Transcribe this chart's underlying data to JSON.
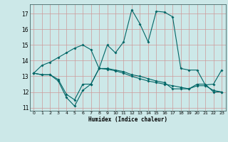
{
  "title": "",
  "xlabel": "Humidex (Indice chaleur)",
  "ylabel": "",
  "xlim": [
    -0.5,
    23.5
  ],
  "ylim": [
    10.8,
    17.6
  ],
  "yticks": [
    11,
    12,
    13,
    14,
    15,
    16,
    17
  ],
  "xticks": [
    0,
    1,
    2,
    3,
    4,
    5,
    6,
    7,
    8,
    9,
    10,
    11,
    12,
    13,
    14,
    15,
    16,
    17,
    18,
    19,
    20,
    21,
    22,
    23
  ],
  "bg_color": "#cce8e8",
  "grid_color": "#cc9999",
  "line_color": "#006666",
  "line1_x": [
    0,
    1,
    2,
    3,
    4,
    5,
    6,
    7,
    8,
    9,
    10,
    11,
    12,
    13,
    14,
    15,
    16,
    17,
    18,
    19,
    20,
    21,
    22,
    23
  ],
  "line1_y": [
    13.2,
    13.7,
    13.9,
    14.2,
    14.5,
    14.8,
    15.0,
    14.7,
    13.5,
    15.0,
    14.5,
    15.2,
    17.25,
    16.35,
    15.2,
    17.15,
    17.1,
    16.8,
    13.5,
    13.4,
    13.4,
    12.45,
    12.5,
    13.4
  ],
  "line2_x": [
    0,
    1,
    2,
    3,
    4,
    5,
    6,
    7,
    8,
    9,
    10,
    11,
    12,
    13,
    14,
    15,
    16,
    17,
    18,
    19,
    20,
    21,
    22,
    23
  ],
  "line2_y": [
    13.2,
    13.1,
    13.1,
    12.7,
    11.65,
    11.1,
    12.1,
    12.5,
    13.5,
    13.45,
    13.35,
    13.2,
    13.0,
    12.85,
    12.7,
    12.6,
    12.5,
    12.4,
    12.3,
    12.2,
    12.4,
    12.4,
    12.1,
    12.0
  ],
  "line3_x": [
    0,
    1,
    2,
    3,
    4,
    5,
    6,
    7,
    8,
    9,
    10,
    11,
    12,
    13,
    14,
    15,
    16,
    17,
    18,
    19,
    20,
    21,
    22,
    23
  ],
  "line3_y": [
    13.2,
    13.1,
    13.1,
    12.8,
    11.85,
    11.5,
    12.5,
    12.5,
    13.5,
    13.5,
    13.4,
    13.3,
    13.1,
    13.0,
    12.85,
    12.7,
    12.6,
    12.2,
    12.2,
    12.2,
    12.5,
    12.5,
    12.0,
    12.0
  ]
}
